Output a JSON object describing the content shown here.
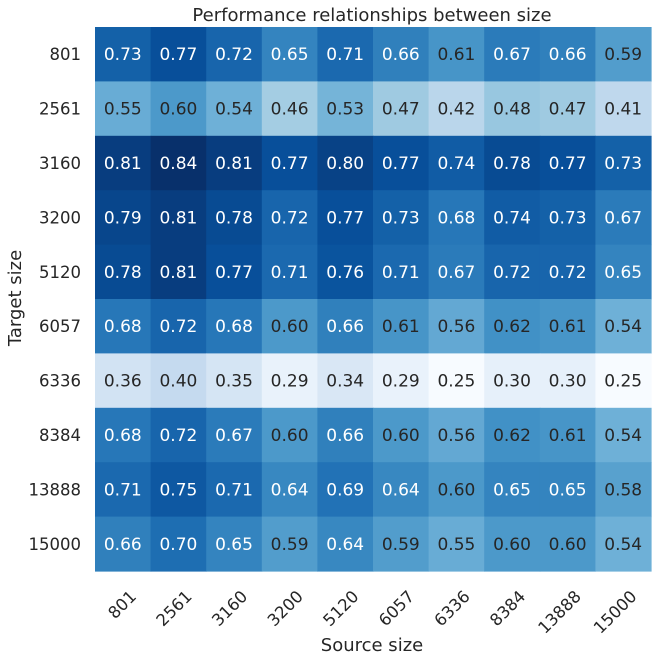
{
  "chart_data": {
    "type": "heatmap",
    "title": "Performance relationships between size",
    "xlabel": "Source size",
    "ylabel": "Target size",
    "x_categories": [
      "801",
      "2561",
      "3160",
      "3200",
      "5120",
      "6057",
      "6336",
      "8384",
      "13888",
      "15000"
    ],
    "y_categories": [
      "801",
      "2561",
      "3160",
      "3200",
      "5120",
      "6057",
      "6336",
      "8384",
      "13888",
      "15000"
    ],
    "values": [
      [
        "0.73",
        "0.77",
        "0.72",
        "0.65",
        "0.71",
        "0.66",
        "0.61",
        "0.67",
        "0.66",
        "0.59"
      ],
      [
        "0.55",
        "0.60",
        "0.54",
        "0.46",
        "0.53",
        "0.47",
        "0.42",
        "0.48",
        "0.47",
        "0.41"
      ],
      [
        "0.81",
        "0.84",
        "0.81",
        "0.77",
        "0.80",
        "0.77",
        "0.74",
        "0.78",
        "0.77",
        "0.73"
      ],
      [
        "0.79",
        "0.81",
        "0.78",
        "0.72",
        "0.77",
        "0.73",
        "0.68",
        "0.74",
        "0.73",
        "0.67"
      ],
      [
        "0.78",
        "0.81",
        "0.77",
        "0.71",
        "0.76",
        "0.71",
        "0.67",
        "0.72",
        "0.72",
        "0.65"
      ],
      [
        "0.68",
        "0.72",
        "0.68",
        "0.60",
        "0.66",
        "0.61",
        "0.56",
        "0.62",
        "0.61",
        "0.54"
      ],
      [
        "0.36",
        "0.40",
        "0.35",
        "0.29",
        "0.34",
        "0.29",
        "0.25",
        "0.30",
        "0.30",
        "0.25"
      ],
      [
        "0.68",
        "0.72",
        "0.67",
        "0.60",
        "0.66",
        "0.60",
        "0.56",
        "0.62",
        "0.61",
        "0.54"
      ],
      [
        "0.71",
        "0.75",
        "0.71",
        "0.64",
        "0.69",
        "0.64",
        "0.60",
        "0.65",
        "0.65",
        "0.58"
      ],
      [
        "0.66",
        "0.70",
        "0.65",
        "0.59",
        "0.64",
        "0.59",
        "0.55",
        "0.60",
        "0.60",
        "0.54"
      ]
    ],
    "color_scale": "Blues",
    "color_range": [
      0.25,
      0.84
    ],
    "colorbar": false,
    "grid": false
  }
}
